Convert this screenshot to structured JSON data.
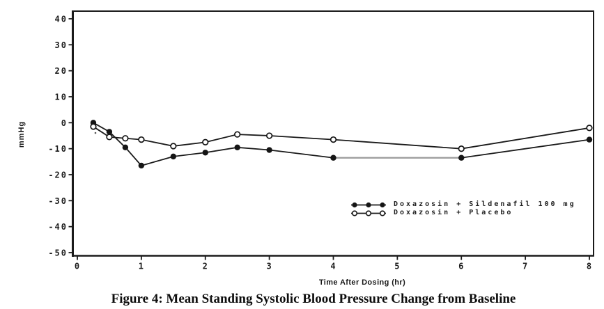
{
  "chart_data": {
    "type": "line",
    "title": "Figure 4: Mean Standing Systolic Blood Pressure Change from Baseline",
    "xlabel": "Time After Dosing (hr)",
    "ylabel": "mmHg",
    "xlim": [
      0,
      8
    ],
    "ylim": [
      -50,
      40
    ],
    "xticks": [
      0,
      1,
      2,
      3,
      4,
      5,
      6,
      7,
      8
    ],
    "yticks": [
      40,
      30,
      20,
      10,
      0,
      -10,
      -20,
      -30,
      -40,
      -50
    ],
    "grid": false,
    "legend_position": "inside-lower-right",
    "line_color": "#1a1a1a",
    "background_color": "#ffffff",
    "x": [
      0.25,
      0.5,
      0.75,
      1,
      1.5,
      2,
      2.5,
      3,
      4,
      6,
      8
    ],
    "series": [
      {
        "name": "Doxazosin + Sildenafil 100 mg",
        "marker": "filled-circle",
        "values": [
          0,
          -3.5,
          -9.5,
          -16.5,
          -13,
          -11.5,
          -9.5,
          -10.5,
          -13.5,
          -13.5,
          -6.5
        ]
      },
      {
        "name": "Doxazosin + Placebo",
        "marker": "open-circle",
        "values": [
          -1.5,
          -5.5,
          -6,
          -6.5,
          -9,
          -7.5,
          -4.5,
          -5,
          -6.5,
          -10,
          -2
        ]
      }
    ]
  }
}
